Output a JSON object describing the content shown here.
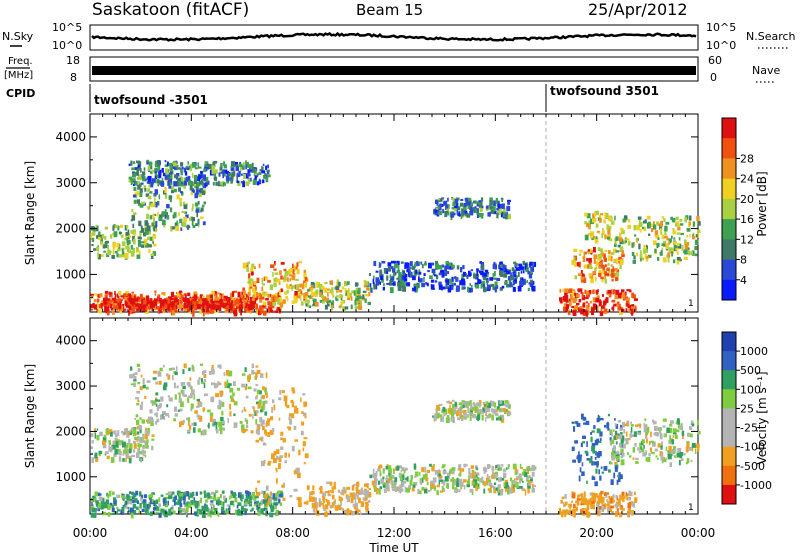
{
  "header": {
    "station": "Saskatoon (fitACF)",
    "beam": "Beam 15",
    "date": "25/Apr/2012"
  },
  "strips": {
    "nsky_label": "N.Sky",
    "nsky_left_ticks": [
      "10^5",
      "10^0"
    ],
    "nsky_right_ticks": [
      "10^5",
      "10^0"
    ],
    "nsearch_label": "N.Search",
    "freq_label_1": "Freq.",
    "freq_label_2": "[MHz]",
    "freq_ticks": [
      "18",
      "8"
    ],
    "nave_ticks": [
      "60",
      "0"
    ],
    "nave_label": "Nave",
    "cpid_label": "CPID",
    "cpid_entries": [
      {
        "label": "twofsound -3501",
        "start_hour": 0
      },
      {
        "label": "twofsound 3501",
        "start_hour": 18
      }
    ]
  },
  "colors": {
    "power_scale": [
      "#0a1aff",
      "#2a48d8",
      "#3f7a68",
      "#3ea050",
      "#a8d040",
      "#f0d020",
      "#f09020",
      "#f05010",
      "#e01010"
    ],
    "velocity_scale": [
      "#2040b0",
      "#3060c0",
      "#30a060",
      "#80cc40",
      "#b4b4b4",
      "#b4b4b4",
      "#f0a020",
      "#f07010",
      "#e01010"
    ]
  },
  "chart_data": [
    {
      "type": "heatmap",
      "name": "power",
      "ylabel": "Slant Range [km]",
      "xlabel": "Time UT",
      "x_ticks": [
        "00:00",
        "04:00",
        "08:00",
        "12:00",
        "16:00",
        "20:00",
        "00:00"
      ],
      "xlim_hours": [
        0,
        24
      ],
      "ylim": [
        180,
        4500
      ],
      "y_ticks": [
        1000,
        2000,
        3000,
        4000
      ],
      "colorbar_label": "Power [dB]",
      "colorbar_ticks": [
        "4",
        "8",
        "12",
        "16",
        "20",
        "24",
        "28"
      ],
      "colorbar_range": [
        0,
        32
      ],
      "beam_label": "1",
      "regions": [
        {
          "t0": 0.0,
          "t1": 7.5,
          "r0": 200,
          "r1": 650,
          "level": 26
        },
        {
          "t0": 0.5,
          "t1": 6.5,
          "r0": 300,
          "r1": 500,
          "level": 30
        },
        {
          "t0": 0.0,
          "t1": 2.5,
          "r0": 1400,
          "r1": 2100,
          "level": 14
        },
        {
          "t0": 1.5,
          "t1": 4.5,
          "r0": 2000,
          "r1": 3100,
          "level": 12
        },
        {
          "t0": 1.5,
          "t1": 7.0,
          "r0": 3000,
          "r1": 3500,
          "level": 9
        },
        {
          "t0": 6.0,
          "t1": 8.5,
          "r0": 400,
          "r1": 1300,
          "level": 22
        },
        {
          "t0": 8.5,
          "t1": 11.0,
          "r0": 300,
          "r1": 900,
          "level": 16
        },
        {
          "t0": 11.0,
          "t1": 17.5,
          "r0": 700,
          "r1": 1300,
          "level": 6
        },
        {
          "t0": 13.5,
          "t1": 16.5,
          "r0": 2300,
          "r1": 2700,
          "level": 9
        },
        {
          "t0": 18.5,
          "t1": 21.5,
          "r0": 200,
          "r1": 700,
          "level": 28
        },
        {
          "t0": 19.0,
          "t1": 21.0,
          "r0": 900,
          "r1": 1600,
          "level": 23
        },
        {
          "t0": 20.5,
          "t1": 24.0,
          "r0": 1300,
          "r1": 2300,
          "level": 16
        },
        {
          "t0": 19.5,
          "t1": 20.5,
          "r0": 1800,
          "r1": 2400,
          "level": 18
        }
      ]
    },
    {
      "type": "heatmap",
      "name": "velocity",
      "ylabel": "Slant Range [km]",
      "xlabel": "Time UT",
      "x_ticks": [
        "00:00",
        "04:00",
        "08:00",
        "12:00",
        "16:00",
        "20:00",
        "00:00"
      ],
      "xlim_hours": [
        0,
        24
      ],
      "ylim": [
        180,
        4500
      ],
      "y_ticks": [
        1000,
        2000,
        3000,
        4000
      ],
      "colorbar_label": "Velocity [m s⁻¹]",
      "colorbar_ticks": [
        "1000",
        "500",
        "100",
        "25",
        "-25",
        "-100",
        "-500",
        "-1000"
      ],
      "beam_label": "1",
      "regions": [
        {
          "t0": 0.0,
          "t1": 7.5,
          "r0": 200,
          "r1": 700,
          "vel": 150
        },
        {
          "t0": 0.0,
          "t1": 2.5,
          "r0": 1400,
          "r1": 2100,
          "vel": 0
        },
        {
          "t0": 1.5,
          "t1": 7.0,
          "r0": 2000,
          "r1": 3500,
          "vel": 0
        },
        {
          "t0": 6.5,
          "t1": 8.5,
          "r0": 400,
          "r1": 3000,
          "vel": -150
        },
        {
          "t0": 8.5,
          "t1": 11.0,
          "r0": 200,
          "r1": 900,
          "vel": -150
        },
        {
          "t0": 11.0,
          "t1": 17.5,
          "r0": 700,
          "r1": 1300,
          "vel": 0
        },
        {
          "t0": 13.5,
          "t1": 16.5,
          "r0": 2300,
          "r1": 2700,
          "vel": 0
        },
        {
          "t0": 18.5,
          "t1": 21.5,
          "r0": 200,
          "r1": 700,
          "vel": -200
        },
        {
          "t0": 19.0,
          "t1": 21.0,
          "r0": 900,
          "r1": 2400,
          "vel": 300
        },
        {
          "t0": 20.5,
          "t1": 24.0,
          "r0": 1300,
          "r1": 2300,
          "vel": 0
        }
      ]
    }
  ]
}
